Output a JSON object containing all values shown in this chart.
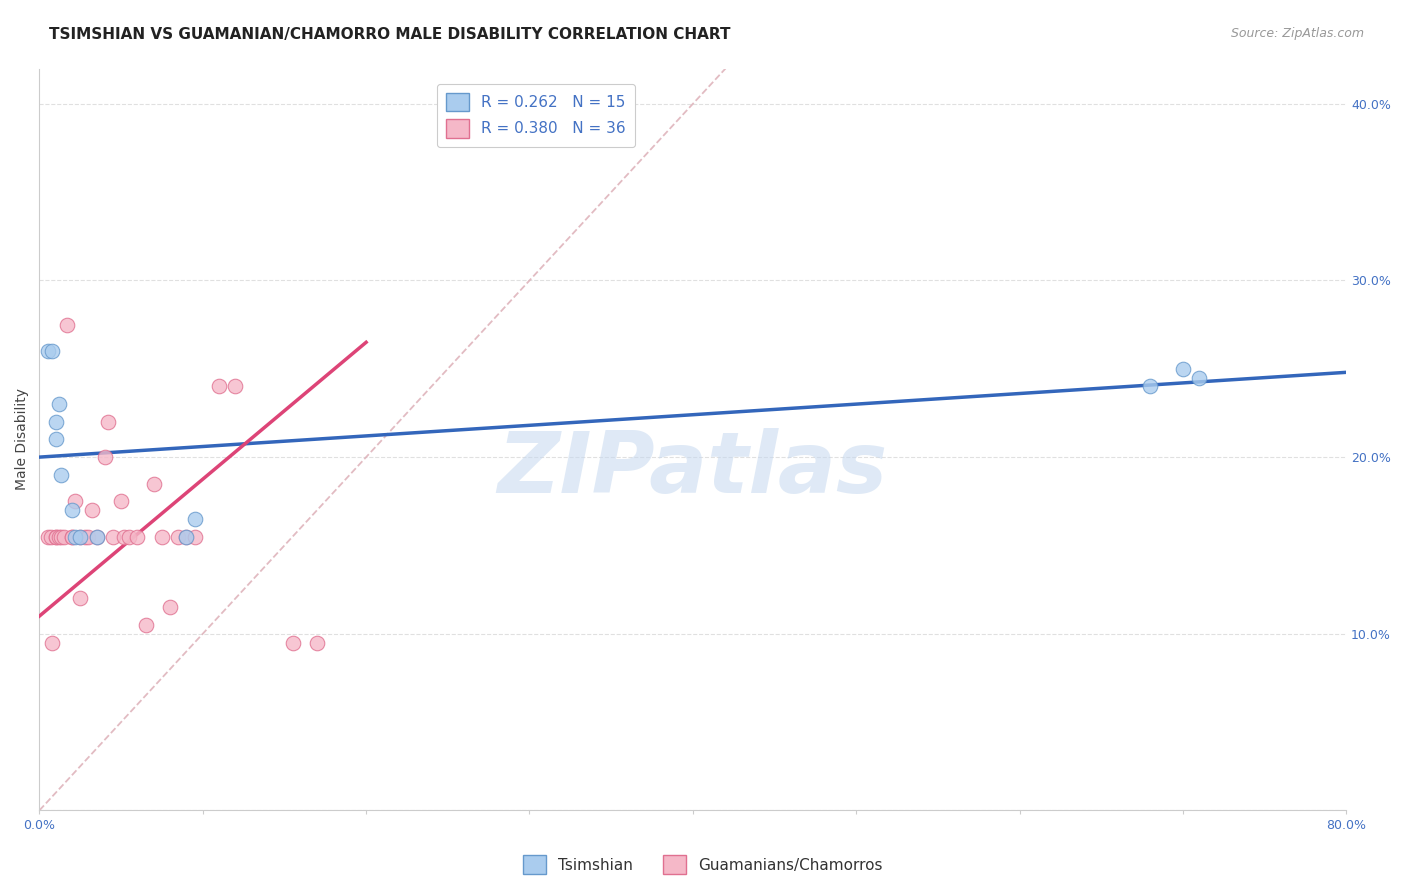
{
  "title": "TSIMSHIAN VS GUAMANIAN/CHAMORRO MALE DISABILITY CORRELATION CHART",
  "source": "Source: ZipAtlas.com",
  "ylabel": "Male Disability",
  "xlim": [
    0,
    0.8
  ],
  "ylim": [
    0,
    0.42
  ],
  "yticks": [
    0.0,
    0.1,
    0.2,
    0.3,
    0.4
  ],
  "watermark": "ZIPatlas",
  "legend_blue_label": "R = 0.262   N = 15",
  "legend_pink_label": "R = 0.380   N = 36",
  "tsimshian_color": "#aaccee",
  "guamanian_color": "#f5b8c8",
  "tsimshian_edge": "#6699cc",
  "guamanian_edge": "#e07090",
  "blue_line_color": "#3366bb",
  "pink_line_color": "#dd4477",
  "diag_line_color": "#ddb0b8",
  "grid_color": "#dddddd",
  "title_color": "#222222",
  "axis_color": "#4472c4",
  "tsimshian_x": [
    0.005,
    0.008,
    0.01,
    0.01,
    0.012,
    0.013,
    0.02,
    0.022,
    0.025,
    0.035,
    0.09,
    0.095,
    0.68,
    0.7,
    0.71
  ],
  "tsimshian_y": [
    0.26,
    0.26,
    0.21,
    0.22,
    0.23,
    0.19,
    0.17,
    0.155,
    0.155,
    0.155,
    0.155,
    0.165,
    0.24,
    0.25,
    0.245
  ],
  "guamanian_x": [
    0.005,
    0.007,
    0.008,
    0.01,
    0.01,
    0.012,
    0.013,
    0.015,
    0.017,
    0.02,
    0.02,
    0.022,
    0.025,
    0.025,
    0.028,
    0.03,
    0.032,
    0.035,
    0.04,
    0.042,
    0.045,
    0.05,
    0.052,
    0.055,
    0.06,
    0.065,
    0.07,
    0.075,
    0.08,
    0.085,
    0.09,
    0.095,
    0.11,
    0.12,
    0.155,
    0.17
  ],
  "guamanian_y": [
    0.155,
    0.155,
    0.095,
    0.155,
    0.155,
    0.155,
    0.155,
    0.155,
    0.275,
    0.155,
    0.155,
    0.175,
    0.155,
    0.12,
    0.155,
    0.155,
    0.17,
    0.155,
    0.2,
    0.22,
    0.155,
    0.175,
    0.155,
    0.155,
    0.155,
    0.105,
    0.185,
    0.155,
    0.115,
    0.155,
    0.155,
    0.155,
    0.24,
    0.24,
    0.095,
    0.095
  ],
  "blue_line_x": [
    0.0,
    0.8
  ],
  "blue_line_y": [
    0.2,
    0.248
  ],
  "pink_line_x": [
    0.0,
    0.2
  ],
  "pink_line_y": [
    0.11,
    0.265
  ],
  "diag_line_x": [
    0.0,
    0.42
  ],
  "diag_line_y": [
    0.0,
    0.42
  ],
  "marker_size": 110,
  "title_fontsize": 11,
  "axis_label_fontsize": 10,
  "tick_fontsize": 9,
  "legend_fontsize": 11,
  "source_fontsize": 9
}
